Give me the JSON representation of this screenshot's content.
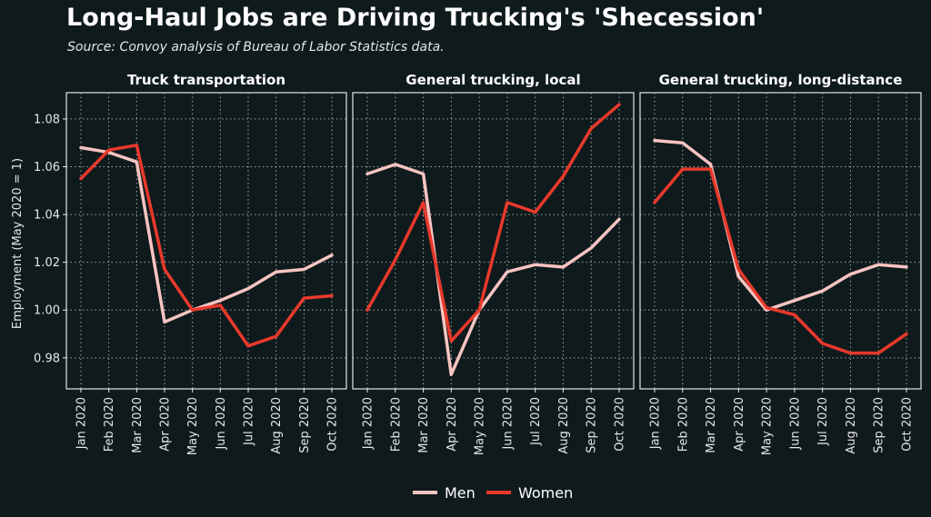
{
  "title": "Long-Haul Jobs are Driving Trucking's 'Shecession'",
  "subtitle": "Source: Convoy analysis of Bureau of Labor Statistics data.",
  "colors": {
    "background": "#0f1a1c",
    "men": "#f7c4c2",
    "women": "#e8392b",
    "grid": "#cfd6d6",
    "panel_border": "#e6e6e6"
  },
  "legend": {
    "placement": "bottom-center",
    "items": [
      "Men",
      "Women"
    ]
  },
  "chart_data": {
    "type": "line",
    "ylabel": "Employment (May 2020 = 1)",
    "ylim": [
      0.967,
      1.091
    ],
    "yticks": [
      "0.98",
      "1.00",
      "1.02",
      "1.04",
      "1.06",
      "1.08"
    ],
    "ytick_values": [
      0.98,
      1.0,
      1.02,
      1.04,
      1.06,
      1.08
    ],
    "categories": [
      "Jan 2020",
      "Feb 2020",
      "Mar 2020",
      "Apr 2020",
      "May 2020",
      "Jun 2020",
      "Jul 2020",
      "Aug 2020",
      "Sep 2020",
      "Oct 2020"
    ],
    "grid": true,
    "panels": [
      {
        "title": "Truck transportation",
        "series": [
          {
            "name": "Men",
            "values": [
              1.068,
              1.066,
              1.062,
              0.995,
              1.0,
              1.004,
              1.009,
              1.016,
              1.017,
              1.023
            ]
          },
          {
            "name": "Women",
            "values": [
              1.055,
              1.067,
              1.069,
              1.017,
              1.0,
              1.002,
              0.985,
              0.989,
              1.005,
              1.006
            ]
          }
        ]
      },
      {
        "title": "General trucking, local",
        "series": [
          {
            "name": "Men",
            "values": [
              1.057,
              1.061,
              1.057,
              0.973,
              1.0,
              1.016,
              1.019,
              1.018,
              1.026,
              1.038
            ]
          },
          {
            "name": "Women",
            "values": [
              1.0,
              1.021,
              1.045,
              0.987,
              1.0,
              1.045,
              1.041,
              1.056,
              1.076,
              1.086
            ]
          }
        ]
      },
      {
        "title": "General trucking, long-distance",
        "series": [
          {
            "name": "Men",
            "values": [
              1.071,
              1.07,
              1.061,
              1.014,
              1.0,
              1.004,
              1.008,
              1.015,
              1.019,
              1.018
            ]
          },
          {
            "name": "Women",
            "values": [
              1.045,
              1.059,
              1.059,
              1.017,
              1.001,
              0.998,
              0.986,
              0.982,
              0.982,
              0.99
            ]
          }
        ]
      }
    ]
  }
}
